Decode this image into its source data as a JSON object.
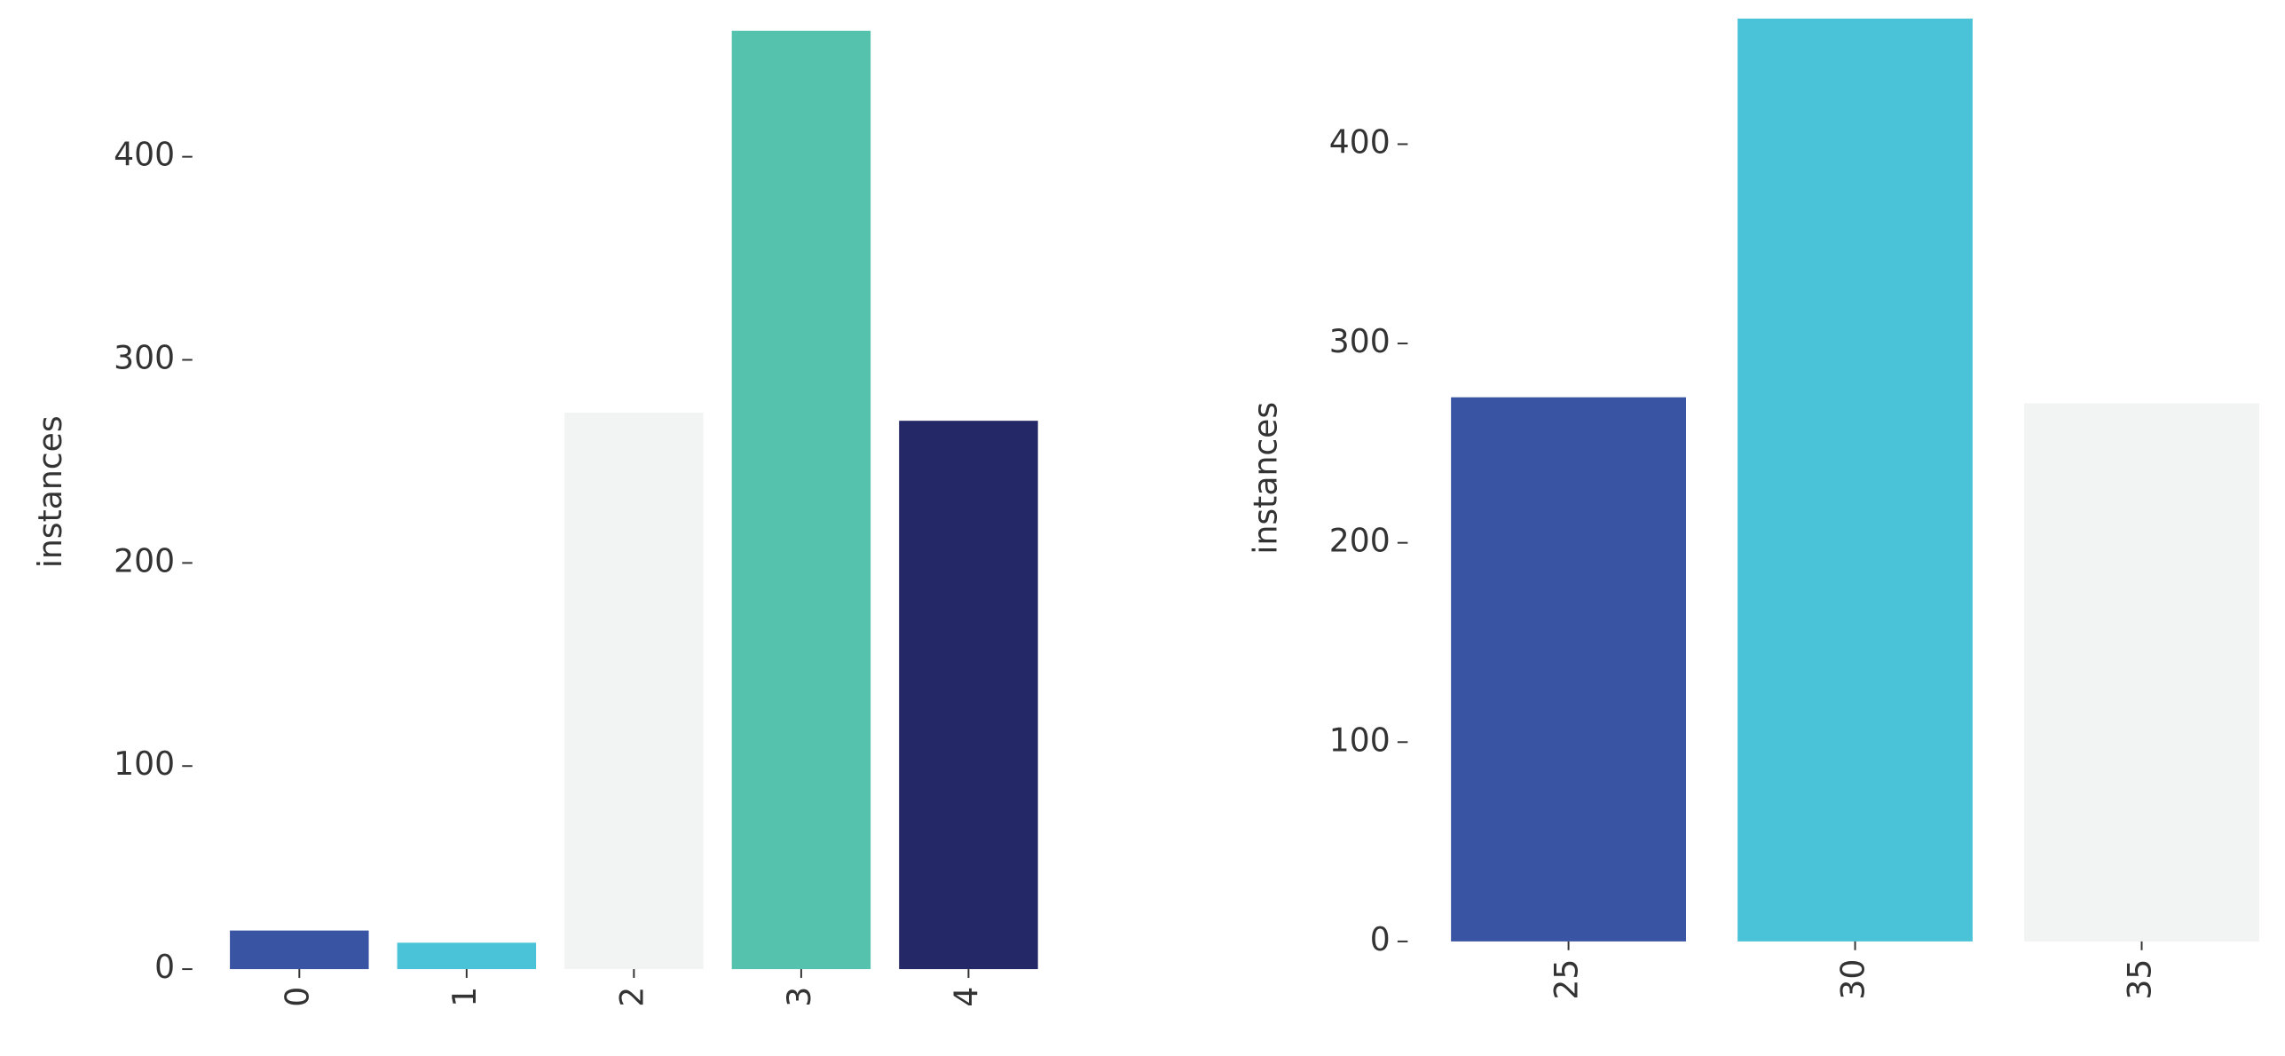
{
  "chart_data": [
    {
      "type": "bar",
      "ylabel": "instances",
      "categories": [
        "0",
        "1",
        "2",
        "3",
        "4"
      ],
      "values": [
        19,
        13,
        274,
        462,
        270
      ],
      "colors": [
        "#3a54a4",
        "#4ac3d9",
        "#f2f4f4",
        "#55c2ad",
        "#252866"
      ],
      "ylim": [
        0,
        470
      ],
      "yticks": [
        0,
        100,
        200,
        300,
        400
      ]
    },
    {
      "type": "bar",
      "ylabel": "instances",
      "categories": [
        "25",
        "30",
        "35"
      ],
      "values": [
        273,
        463,
        270
      ],
      "colors": [
        "#3a54a4",
        "#4ac3d9",
        "#f2f4f4"
      ],
      "ylim": [
        0,
        465
      ],
      "yticks": [
        0,
        100,
        200,
        300,
        400
      ]
    }
  ]
}
